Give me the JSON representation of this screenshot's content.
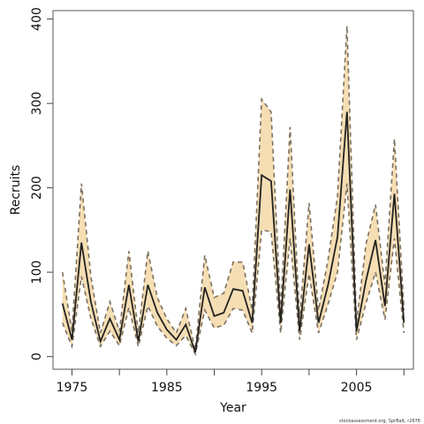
{
  "chart_data": {
    "type": "line",
    "xlabel": "Year",
    "ylabel": "Recruits",
    "credit": "stockassessment.org, SprBalt, r2676",
    "xlim": [
      1973,
      2011
    ],
    "ylim": [
      -15,
      410
    ],
    "x_ticks": [
      1975,
      1980,
      1985,
      1990,
      1995,
      2000,
      2005,
      2010
    ],
    "x_tick_labels": [
      "1975",
      "1985",
      "1995",
      "2005"
    ],
    "y_ticks": [
      0,
      100,
      200,
      300,
      400
    ],
    "y_tick_labels": [
      "0",
      "100",
      "200",
      "300",
      "400"
    ],
    "grid": false,
    "colors": {
      "band": "#f5deb3",
      "bound_line": "#7a7060",
      "estimate_line": "#222222",
      "frame": "#555555"
    },
    "x": [
      1974,
      1975,
      1976,
      1977,
      1978,
      1979,
      1980,
      1981,
      1982,
      1983,
      1984,
      1985,
      1986,
      1987,
      1988,
      1989,
      1990,
      1991,
      1992,
      1993,
      1994,
      1995,
      1996,
      1997,
      1998,
      1999,
      2000,
      2001,
      2002,
      2003,
      2004,
      2005,
      2006,
      2007,
      2008,
      2009,
      2010
    ],
    "series": [
      {
        "role": "estimate",
        "values": [
          63,
          20,
          135,
          65,
          18,
          45,
          20,
          85,
          18,
          85,
          52,
          32,
          20,
          38,
          5,
          82,
          48,
          52,
          80,
          78,
          40,
          215,
          208,
          40,
          198,
          30,
          133,
          40,
          85,
          142,
          290,
          30,
          90,
          138,
          60,
          193,
          40
        ]
      },
      {
        "role": "upper",
        "values": [
          100,
          30,
          205,
          95,
          28,
          65,
          30,
          125,
          28,
          125,
          70,
          45,
          28,
          57,
          8,
          120,
          70,
          75,
          112,
          112,
          55,
          305,
          290,
          55,
          272,
          45,
          182,
          55,
          115,
          190,
          392,
          40,
          133,
          180,
          85,
          258,
          55
        ]
      },
      {
        "role": "lower",
        "values": [
          40,
          12,
          95,
          45,
          12,
          30,
          13,
          58,
          12,
          60,
          36,
          22,
          13,
          25,
          3,
          55,
          34,
          37,
          57,
          55,
          28,
          150,
          148,
          28,
          140,
          20,
          98,
          28,
          62,
          100,
          205,
          20,
          63,
          100,
          44,
          140,
          28
        ]
      }
    ]
  }
}
